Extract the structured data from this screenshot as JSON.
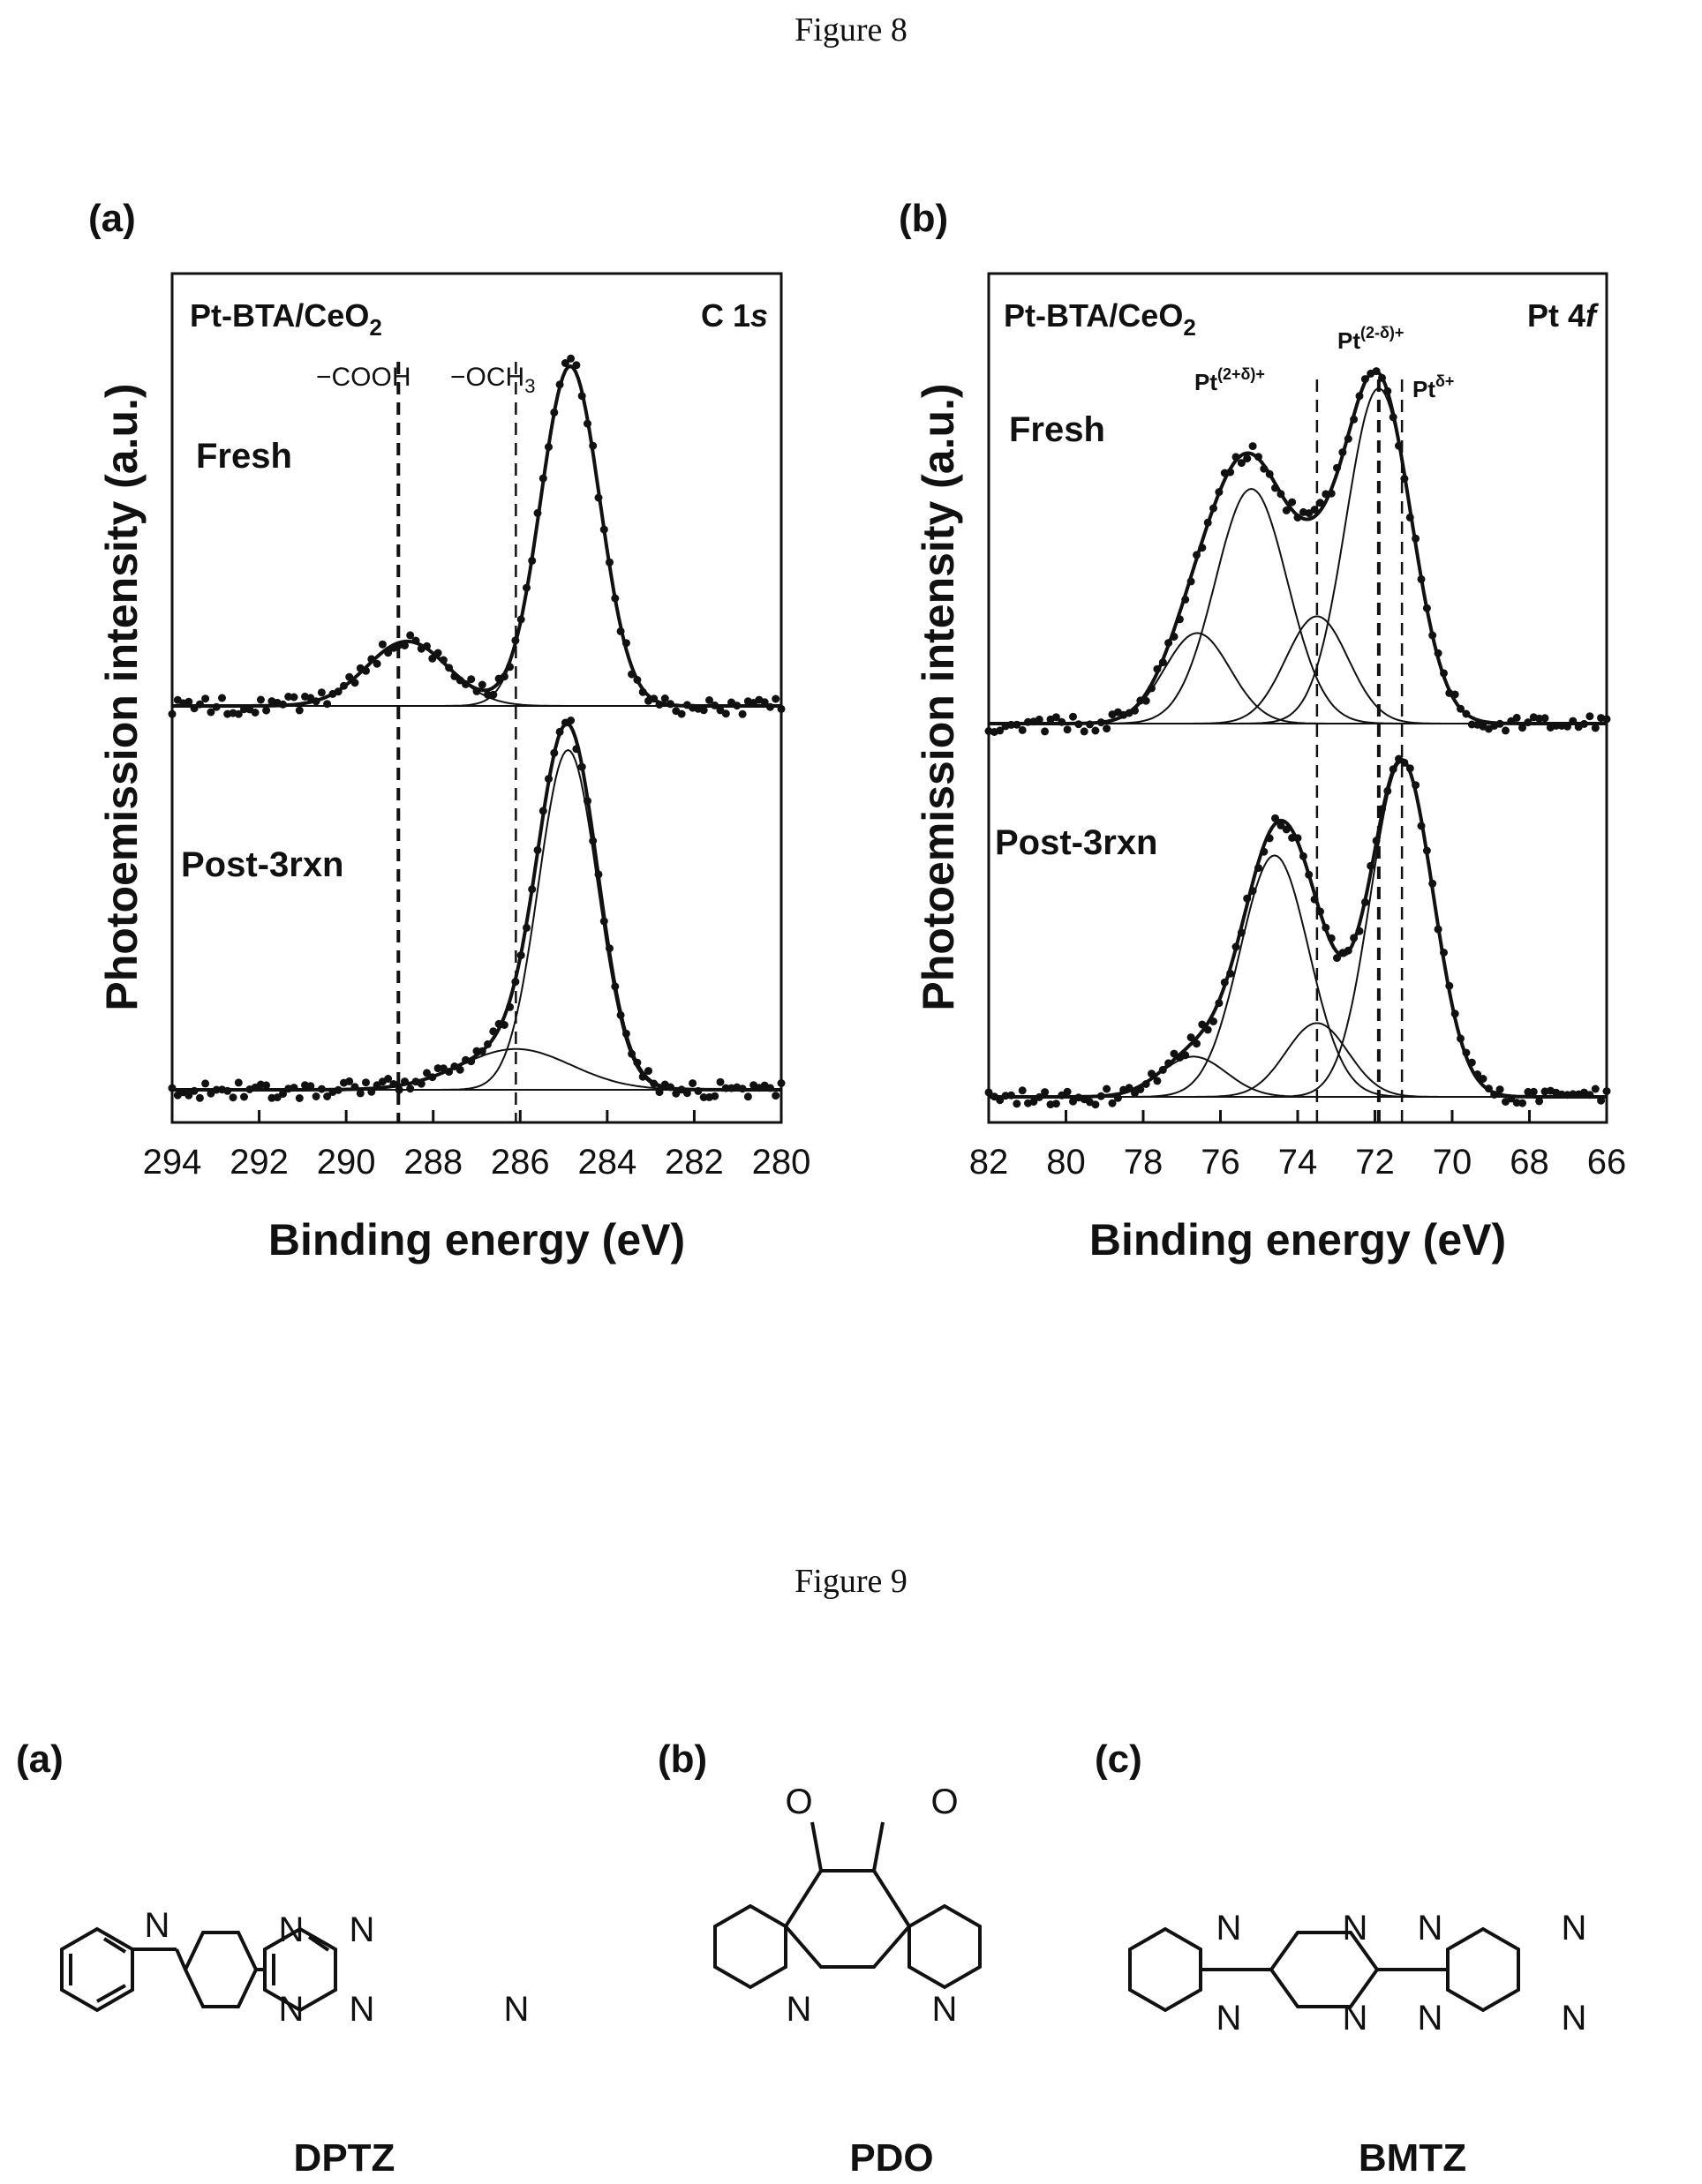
{
  "figure8": {
    "title": "Figure 8",
    "panels": [
      {
        "label": "(a)",
        "sample": "Pt-BTA/CeO",
        "sample_sub": "2",
        "region": "C 1",
        "region_italic": "s",
        "stack_labels": [
          "Fresh",
          "Post-3rxn"
        ],
        "annotations": [
          {
            "text": "−COOH",
            "sub": "",
            "energy": 288.8
          },
          {
            "text": "−OCH",
            "sub": "3",
            "energy": 286.1
          }
        ]
      },
      {
        "label": "(b)",
        "sample": "Pt-BTA/CeO",
        "sample_sub": "2",
        "region": "Pt 4",
        "region_italic": "f",
        "stack_labels": [
          "Fresh",
          "Post-3rxn"
        ],
        "annotations": [
          {
            "text": "Pt",
            "sup": "(2+δ)+",
            "energy": 73.5
          },
          {
            "text": "Pt",
            "sup": "(2-δ)+",
            "energy": 71.9
          },
          {
            "text": "Pt",
            "sup": "δ+",
            "energy": 71.3
          }
        ]
      }
    ]
  },
  "chart_data": [
    {
      "type": "line",
      "panel": "(a)",
      "title": "",
      "xlabel": "Binding energy (eV)",
      "ylabel": "Photoemission intensity (a.u.)",
      "xlim": [
        294,
        280
      ],
      "x_reversed": true,
      "xticks": [
        294,
        292,
        290,
        288,
        286,
        284,
        282,
        280
      ],
      "reference_lines_eV": [
        288.8,
        286.1
      ],
      "series": [
        {
          "name": "Fresh",
          "peaks": [
            {
              "center_eV": 284.85,
              "fwhm_eV": 1.6,
              "height": 1.0
            },
            {
              "center_eV": 288.6,
              "fwhm_eV": 2.2,
              "height": 0.19
            }
          ]
        },
        {
          "name": "Post-3rxn",
          "peaks": [
            {
              "center_eV": 284.9,
              "fwhm_eV": 1.6,
              "height": 1.0
            },
            {
              "center_eV": 286.1,
              "fwhm_eV": 3.0,
              "height": 0.12
            }
          ]
        }
      ]
    },
    {
      "type": "line",
      "panel": "(b)",
      "title": "",
      "xlabel": "Binding energy (eV)",
      "ylabel": "Photoemission intensity (a.u.)",
      "xlim": [
        82,
        66
      ],
      "x_reversed": true,
      "xticks": [
        82,
        80,
        78,
        76,
        74,
        72,
        70,
        68,
        66
      ],
      "reference_lines_eV": [
        73.5,
        71.9,
        71.3
      ],
      "series": [
        {
          "name": "Fresh",
          "peaks": [
            {
              "center_eV": 75.2,
              "fwhm_eV": 2.2,
              "height": 0.7
            },
            {
              "center_eV": 71.9,
              "fwhm_eV": 2.0,
              "height": 1.0
            },
            {
              "center_eV": 76.6,
              "fwhm_eV": 2.0,
              "height": 0.27
            },
            {
              "center_eV": 73.5,
              "fwhm_eV": 1.9,
              "height": 0.32
            }
          ]
        },
        {
          "name": "Post-3rxn",
          "peaks": [
            {
              "center_eV": 74.6,
              "fwhm_eV": 2.1,
              "height": 0.72
            },
            {
              "center_eV": 71.3,
              "fwhm_eV": 1.9,
              "height": 1.0
            },
            {
              "center_eV": 76.7,
              "fwhm_eV": 2.0,
              "height": 0.12
            },
            {
              "center_eV": 73.5,
              "fwhm_eV": 1.9,
              "height": 0.22
            }
          ]
        }
      ]
    }
  ],
  "figure9": {
    "title": "Figure 9",
    "molecules": [
      {
        "label": "(a)",
        "name": "DPTZ",
        "atom": "N"
      },
      {
        "label": "(b)",
        "name": "PDO",
        "atom": "N",
        "atom2": "O"
      },
      {
        "label": "(c)",
        "name": "BMTZ",
        "atom": "N"
      }
    ]
  }
}
